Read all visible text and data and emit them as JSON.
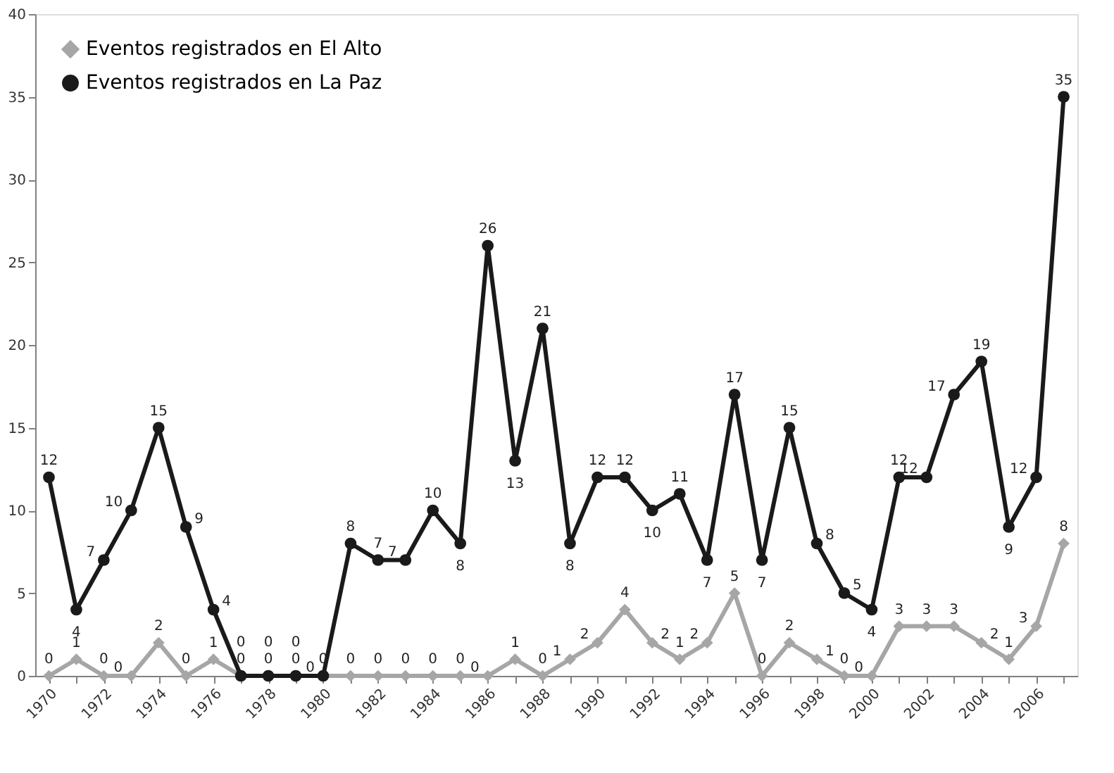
{
  "chart_data": {
    "type": "line",
    "categories": [
      "1970",
      null,
      "1972",
      null,
      "1974",
      null,
      "1976",
      null,
      "1978",
      null,
      "1980",
      null,
      "1982",
      null,
      "1984",
      null,
      "1986",
      null,
      "1988",
      null,
      "1990",
      null,
      "1992",
      null,
      "1994",
      null,
      "1996",
      null,
      "1998",
      null,
      "2000",
      null,
      "2002",
      null,
      "2004",
      null,
      "2006",
      null
    ],
    "series": [
      {
        "name": "Eventos registrados en El Alto",
        "color": "#a6a6a6",
        "marker": "diamond",
        "values": [
          0,
          1,
          0,
          0,
          2,
          0,
          1,
          0,
          0,
          0,
          0,
          0,
          0,
          0,
          0,
          0,
          0,
          1,
          0,
          1,
          2,
          4,
          2,
          1,
          2,
          5,
          0,
          2,
          1,
          0,
          0,
          3,
          3,
          3,
          2,
          1,
          3,
          8
        ]
      },
      {
        "name": "Eventos registrados en La Paz",
        "color": "#1a1a1a",
        "marker": "circle",
        "values": [
          12,
          4,
          7,
          10,
          15,
          9,
          4,
          0,
          0,
          0,
          0,
          8,
          7,
          7,
          10,
          8,
          26,
          13,
          21,
          8,
          12,
          12,
          10,
          11,
          7,
          17,
          7,
          15,
          8,
          5,
          4,
          12,
          12,
          17,
          19,
          9,
          12,
          35
        ]
      }
    ],
    "ylim": [
      0,
      40
    ],
    "yticks": [
      0,
      5,
      10,
      15,
      20,
      25,
      30,
      35,
      40
    ],
    "grid": false,
    "legend": "top left",
    "data_labels": true,
    "line_style": "solid"
  }
}
